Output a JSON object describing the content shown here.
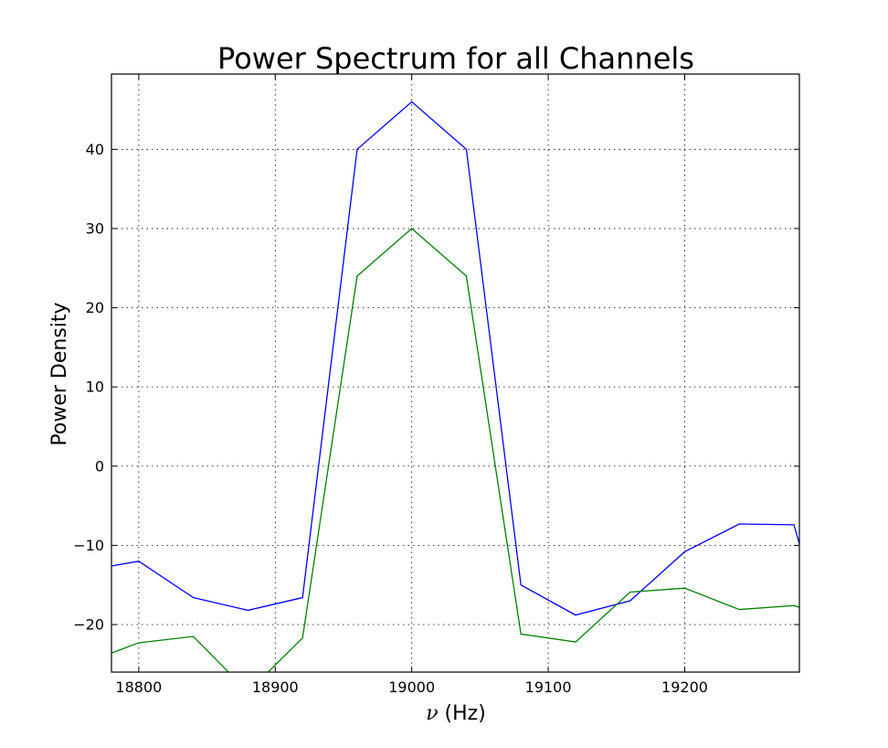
{
  "chart_data": {
    "type": "line",
    "title": "Power Spectrum for all Channels",
    "xlabel_symbol": "ν",
    "xlabel_unit": " (Hz)",
    "ylabel": "Power Density",
    "xlim": [
      18780,
      19284
    ],
    "ylim": [
      -26,
      49.5
    ],
    "x_ticks": [
      18800,
      18900,
      19000,
      19100,
      19200
    ],
    "y_ticks": [
      -20,
      -10,
      0,
      10,
      20,
      30,
      40
    ],
    "y_tick_labels": [
      "−20",
      "−10",
      "0",
      "10",
      "20",
      "30",
      "40"
    ],
    "grid": true,
    "colors": [
      "#0000ff",
      "#008000"
    ],
    "series": [
      {
        "x": [
          18780,
          18800,
          18840,
          18880,
          18920,
          18960,
          19000,
          19040,
          19080,
          19120,
          19160,
          19200,
          19240,
          19280,
          19284
        ],
        "values": [
          -12.6,
          -12.0,
          -16.6,
          -18.2,
          -16.6,
          40.0,
          46.0,
          40.0,
          -15.0,
          -18.8,
          -17.0,
          -10.8,
          -7.3,
          -7.4,
          -9.8
        ]
      },
      {
        "x": [
          18780,
          18800,
          18840,
          18880,
          18920,
          18960,
          19000,
          19040,
          19080,
          19120,
          19160,
          19200,
          19240,
          19280,
          19284
        ],
        "values": [
          -23.6,
          -22.3,
          -21.5,
          -28.5,
          -21.7,
          24.0,
          30.0,
          24.0,
          -21.2,
          -22.2,
          -15.9,
          -15.4,
          -18.1,
          -17.6,
          -17.8
        ]
      }
    ]
  }
}
